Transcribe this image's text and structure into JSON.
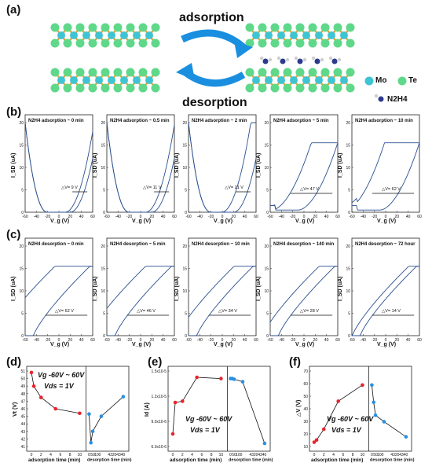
{
  "labels": {
    "a": "(a)",
    "b": "(b)",
    "c": "(c)",
    "d": "(d)",
    "e": "(e)",
    "f": "(f)"
  },
  "schematic": {
    "adsorption": "adsorption",
    "desorption": "desorption",
    "legend_mo": "Mo",
    "legend_te": "Te",
    "legend_n2h4": "N2H4",
    "colors": {
      "mo": "#3fc4d4",
      "te": "#5fd88a",
      "bond": "#e3a640",
      "arrow": "#1a8fe0"
    }
  },
  "axes": {
    "ids_label": "I_SD (uA)",
    "vg_label": "V_g (V)",
    "x_ticks": [
      "-60",
      "-40",
      "-20",
      "0",
      "20",
      "40",
      "60"
    ],
    "y_ticks": [
      "0",
      "5",
      "10",
      "15",
      "20"
    ]
  },
  "row_b": [
    {
      "title": "N2H4 adsorption ~ 0 min",
      "dv": "△V= 9 V"
    },
    {
      "title": "N2H4 adsorption ~ 0.5 min",
      "dv": "△V= 11 V"
    },
    {
      "title": "N2H4 adsorption ~ 2 min",
      "dv": "△V= 21 V"
    },
    {
      "title": "N2H4 adsorption ~ 5 min",
      "dv": "△V= 47 V"
    },
    {
      "title": "N2H4 adsorption ~ 10 min",
      "dv": "△V= 62 V"
    }
  ],
  "row_c": [
    {
      "title": "N2H4 desorption ~ 0 min",
      "dv": "△V= 62 V"
    },
    {
      "title": "N2H4 desorption ~ 5 min",
      "dv": "△V= 46 V"
    },
    {
      "title": "N2H4 desorption ~ 10 min",
      "dv": "△V= 34 V"
    },
    {
      "title": "N2H4 desorption ~ 140 min",
      "dv": "△V= 28 V"
    },
    {
      "title": "N2H4 desorption ~ 72 hour",
      "dv": "△V= 14 V"
    }
  ],
  "bottom": {
    "d": {
      "ylabel": "Vt (V)",
      "anno1": "Vg -60V ~ 60V",
      "anno2": "Vds = 1V",
      "yticks": [
        "41",
        "42",
        "43",
        "44",
        "45",
        "46",
        "47",
        "48",
        "49",
        "50",
        "51"
      ]
    },
    "e": {
      "ylabel": "Id (A)",
      "anno1": "Vg -60V ~ 60V",
      "anno2": "Vds = 1V",
      "yticks": [
        "6.0x10-6",
        "9.0x10-6",
        "1.2x10-5",
        "1.5x10-5"
      ]
    },
    "f": {
      "ylabel": "△V (V)",
      "anno1": "Vg -60V ~ 60V",
      "anno2": "Vds = 1V",
      "yticks": [
        "10",
        "20",
        "30",
        "40",
        "50",
        "60",
        "70"
      ]
    },
    "x_left": "adsorption time (min)",
    "x_right": "desorption time (min)",
    "x_left_ticks": [
      "0",
      "2",
      "4",
      "6",
      "8",
      "10"
    ],
    "x_right_ticks": [
      "0",
      "50",
      "100",
      "4320",
      "4340"
    ]
  },
  "chart_data": [
    {
      "type": "line",
      "title": "",
      "xlabel": "adsorption time (min) | desorption time (min)",
      "ylabel": "Vt (V)",
      "series": [
        {
          "x": [
            0,
            0.5,
            2,
            5,
            10
          ],
          "values": [
            50.8,
            49.0,
            47.5,
            46.0,
            45.4
          ]
        },
        {
          "x": [
            0,
            5,
            10,
            140,
            4320
          ],
          "values": [
            45.3,
            41.5,
            43.0,
            45.0,
            47.6
          ]
        }
      ]
    },
    {
      "type": "line",
      "title": "",
      "xlabel": "adsorption time (min) | desorption time (min)",
      "ylabel": "Id (A)",
      "series": [
        {
          "x": [
            0,
            0.5,
            2,
            5,
            10
          ],
          "values": [
            7e-06,
            1.2e-05,
            1.22e-05,
            1.6e-05,
            1.58e-05
          ]
        },
        {
          "x": [
            0,
            5,
            10,
            140,
            4320
          ],
          "values": [
            1.58e-05,
            1.58e-05,
            1.57e-05,
            1.53e-05,
            5.5e-06
          ]
        }
      ]
    },
    {
      "type": "line",
      "title": "",
      "xlabel": "adsorption time (min) | desorption time (min)",
      "ylabel": "△V (V)",
      "series": [
        {
          "x": [
            0,
            0.5,
            2,
            5,
            10
          ],
          "values": [
            9,
            11,
            21,
            47,
            62
          ]
        },
        {
          "x": [
            0,
            5,
            10,
            140,
            4320
          ],
          "values": [
            62,
            46,
            34,
            28,
            14
          ]
        }
      ]
    }
  ]
}
